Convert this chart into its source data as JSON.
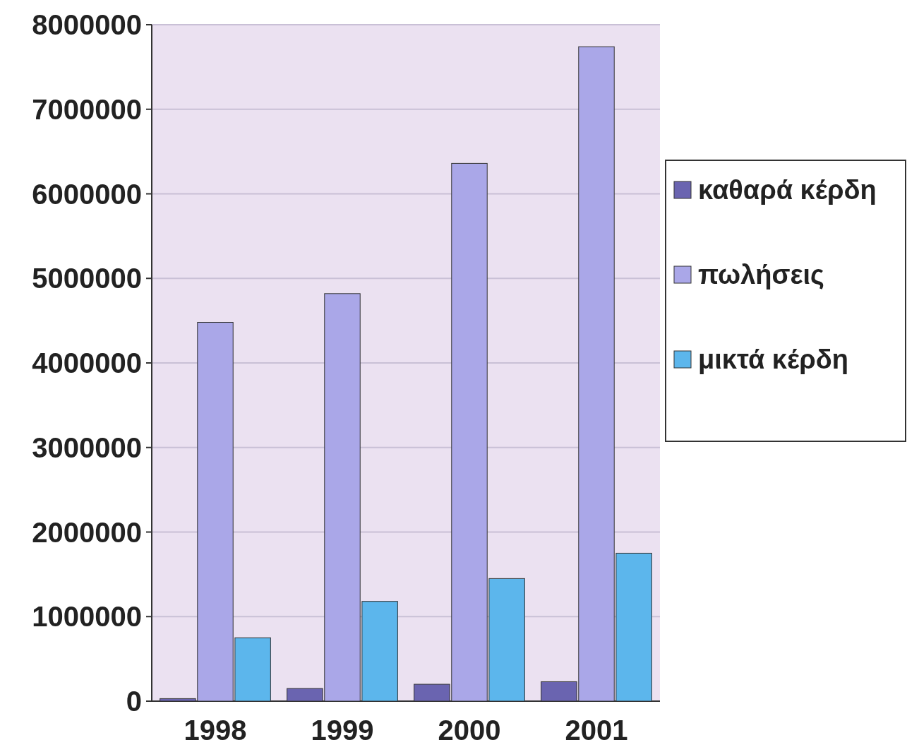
{
  "chart_data": {
    "type": "bar",
    "categories": [
      "1998",
      "1999",
      "2000",
      "2001"
    ],
    "series": [
      {
        "name": "καθαρά κέρδη",
        "color": "#6a64b0",
        "values": [
          30000,
          150000,
          200000,
          230000
        ]
      },
      {
        "name": "πωλήσεις",
        "color": "#aaa7e8",
        "values": [
          4480000,
          4820000,
          6360000,
          7740000
        ]
      },
      {
        "name": "μικτά κέρδη",
        "color": "#5cb6ec",
        "values": [
          750000,
          1180000,
          1450000,
          1750000
        ]
      }
    ],
    "ylim": [
      0,
      8000000
    ],
    "yticks": [
      0,
      1000000,
      2000000,
      3000000,
      4000000,
      5000000,
      6000000,
      7000000,
      8000000
    ],
    "grid": "y",
    "legend": "right"
  }
}
